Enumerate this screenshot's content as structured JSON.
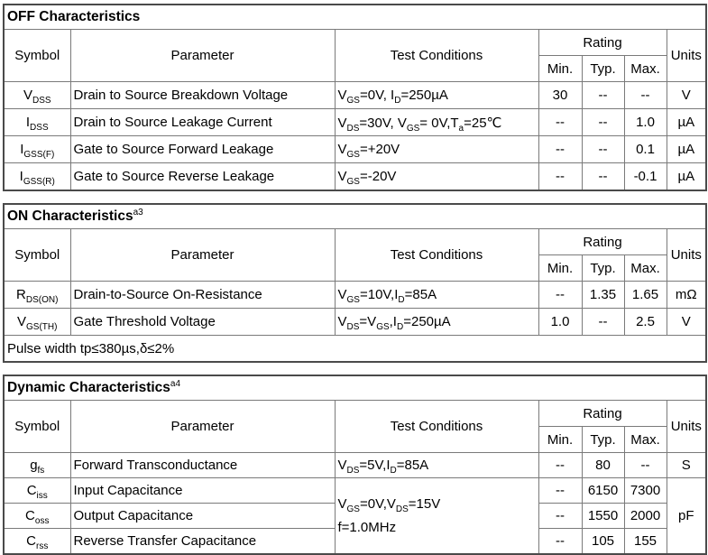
{
  "colors": {
    "background": "#ffffff",
    "text": "#000000",
    "border_inner": "#7a7a7a",
    "border_outer": "#4a4a4a"
  },
  "header": {
    "symbol": "Symbol",
    "parameter": "Parameter",
    "test_conditions": "Test Conditions",
    "rating": "Rating",
    "min": "Min.",
    "typ": "Typ.",
    "max": "Max.",
    "units": "Units"
  },
  "sections": [
    {
      "title": "OFF Characteristics",
      "title_sup": "",
      "rows": [
        {
          "symbol": "V~DSS~",
          "parameter": "Drain to Source Breakdown Voltage",
          "test": "V~GS~=0V, I~D~=250µA",
          "min": "30",
          "typ": "--",
          "max": "--",
          "units": "V"
        },
        {
          "symbol": "I~DSS~",
          "parameter": "Drain to Source Leakage Current",
          "test": "V~DS~=30V, V~GS~= 0V,T~a~=25℃",
          "min": "--",
          "typ": "--",
          "max": "1.0",
          "units": "µA"
        },
        {
          "symbol": "I~GSS(F)~",
          "parameter": "Gate to Source Forward Leakage",
          "test": "V~GS~=+20V",
          "min": "--",
          "typ": "--",
          "max": "0.1",
          "units": "µA"
        },
        {
          "symbol": "I~GSS(R)~",
          "parameter": "Gate to Source Reverse Leakage",
          "test": "V~GS~=-20V",
          "min": "--",
          "typ": "--",
          "max": "-0.1",
          "units": "µA"
        }
      ]
    },
    {
      "title": "ON Characteristics",
      "title_sup": "a3",
      "rows": [
        {
          "symbol": "R~DS(ON)~",
          "parameter": "Drain-to-Source On-Resistance",
          "test": "V~GS~=10V,I~D~=85A",
          "min": "--",
          "typ": "1.35",
          "max": "1.65",
          "units": "mΩ"
        },
        {
          "symbol": "V~GS(TH)~",
          "parameter": "Gate Threshold Voltage",
          "test": "V~DS~=V~GS~,I~D~=250µA",
          "min": "1.0",
          "typ": "--",
          "max": "2.5",
          "units": "V"
        }
      ],
      "footnote": "Pulse width tp≤380µs,δ≤2%"
    },
    {
      "title": "Dynamic Characteristics",
      "title_sup": "a4",
      "rows": [
        {
          "symbol": "g~fs~",
          "parameter": "Forward Transconductance",
          "test": "V~DS~=5V,I~D~=85A",
          "min": "--",
          "typ": "80",
          "max": "--",
          "units": "S"
        },
        {
          "symbol": "C~iss~",
          "parameter": "Input Capacitance",
          "min": "--",
          "typ": "6150",
          "max": "7300"
        },
        {
          "symbol": "C~oss~",
          "parameter": "Output Capacitance",
          "min": "--",
          "typ": "1550",
          "max": "2000"
        },
        {
          "symbol": "C~rss~",
          "parameter": "Reverse Transfer Capacitance",
          "min": "--",
          "typ": "105",
          "max": "155"
        }
      ],
      "merged_test": "V~GS~=0V,V~DS~=15V\nf=1.0MHz",
      "merged_units": "pF"
    }
  ]
}
